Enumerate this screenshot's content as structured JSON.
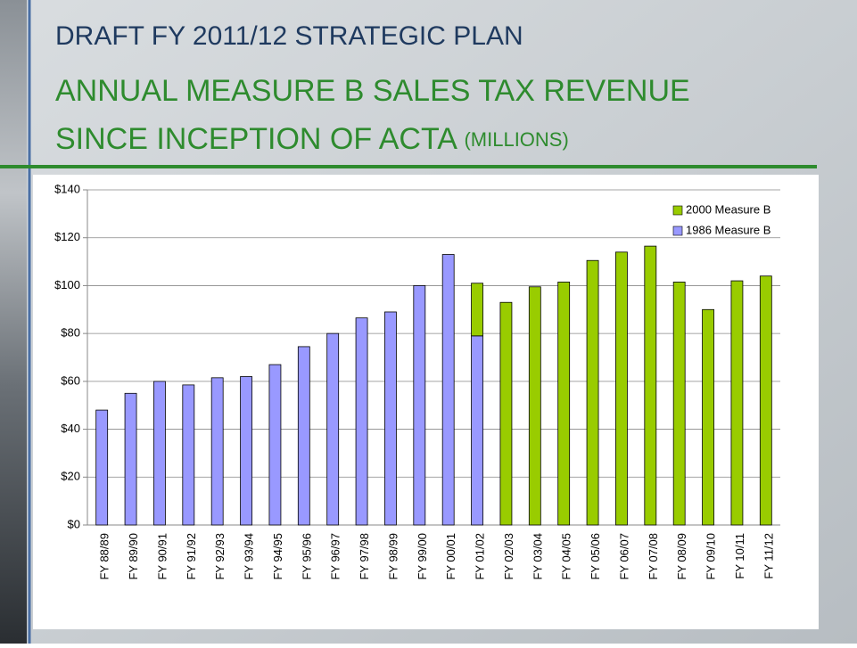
{
  "chart_data": {
    "type": "stacked_bar",
    "title": "DRAFT FY 2011/12 STRATEGIC PLAN",
    "subtitle": [
      "ANNUAL MEASURE B SALES TAX REVENUE",
      "SINCE INCEPTION OF ACTA",
      "(MILLIONS)"
    ],
    "categories": [
      "FY 88/89",
      "FY 89/90",
      "FY 90/91",
      "FY 91/92",
      "FY 92/93",
      "FY 93/94",
      "FY 94/95",
      "FY 95/96",
      "FY 96/97",
      "FY 97/98",
      "FY 98/99",
      "FY 99/00",
      "FY 00/01",
      "FY 01/02",
      "FY 02/03",
      "FY 03/04",
      "FY 04/05",
      "FY 05/06",
      "FY 06/07",
      "FY 07/08",
      "FY 08/09",
      "FY 09/10",
      "FY 10/11",
      "FY 11/12"
    ],
    "series": [
      {
        "name": "1986 Measure B",
        "color": "#9999ff",
        "values": [
          48,
          55,
          60,
          58.5,
          61.5,
          62,
          67,
          74.5,
          80,
          86.5,
          89,
          100,
          113,
          79,
          null,
          null,
          null,
          null,
          null,
          null,
          null,
          null,
          null,
          null
        ]
      },
      {
        "name": "2000 Measure B",
        "color": "#99cc00",
        "values": [
          null,
          null,
          null,
          null,
          null,
          null,
          null,
          null,
          null,
          null,
          null,
          null,
          null,
          22,
          93,
          99.5,
          101.5,
          110.5,
          114,
          116.5,
          101.5,
          90,
          102,
          104
        ]
      }
    ],
    "ylim": [
      0,
      140
    ],
    "yticks": [
      {
        "value": 0,
        "label": "$0"
      },
      {
        "value": 20,
        "label": "$20"
      },
      {
        "value": 40,
        "label": "$40"
      },
      {
        "value": 60,
        "label": "$60"
      },
      {
        "value": 80,
        "label": "$80"
      },
      {
        "value": 100,
        "label": "$100"
      },
      {
        "value": 120,
        "label": "$120"
      },
      {
        "value": 140,
        "label": "$140"
      }
    ],
    "grid": true,
    "legend": "top-right"
  }
}
